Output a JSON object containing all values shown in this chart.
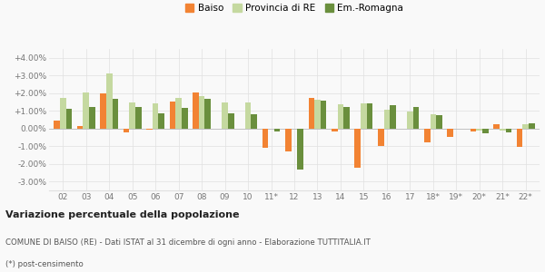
{
  "categories": [
    "02",
    "03",
    "04",
    "05",
    "06",
    "07",
    "08",
    "09",
    "10",
    "11*",
    "12",
    "13",
    "14",
    "15",
    "16",
    "17",
    "18*",
    "19*",
    "20*",
    "21*",
    "22*"
  ],
  "baiso": [
    0.45,
    0.12,
    1.97,
    -0.22,
    -0.07,
    1.55,
    2.02,
    -0.03,
    0.0,
    -1.08,
    -1.3,
    1.72,
    -0.15,
    -2.22,
    -0.98,
    0.0,
    -0.78,
    -0.45,
    -0.15,
    0.25,
    -1.05
  ],
  "provincia": [
    1.72,
    2.02,
    3.12,
    1.47,
    1.43,
    1.72,
    1.82,
    1.47,
    1.45,
    0.0,
    0.0,
    1.65,
    1.35,
    1.42,
    1.05,
    0.97,
    0.82,
    0.0,
    -0.12,
    -0.1,
    0.25
  ],
  "emromagna": [
    1.1,
    1.22,
    1.7,
    1.22,
    0.85,
    1.15,
    1.7,
    0.85,
    0.82,
    -0.18,
    -2.3,
    1.58,
    1.2,
    1.42,
    1.32,
    1.22,
    0.78,
    0.0,
    -0.25,
    -0.2,
    0.28
  ],
  "color_baiso": "#f28333",
  "color_provincia": "#c5d9a0",
  "color_emromagna": "#6a8f3d",
  "title": "Variazione percentuale della popolazione",
  "subtitle": "COMUNE DI BAISO (RE) - Dati ISTAT al 31 dicembre di ogni anno - Elaborazione TUTTITALIA.IT",
  "footnote": "(*) post-censimento",
  "ylim": [
    -3.5,
    4.5
  ],
  "yticks": [
    -3.0,
    -2.0,
    -1.0,
    0.0,
    1.0,
    2.0,
    3.0,
    4.0
  ],
  "ytick_labels": [
    "-3.00%",
    "-2.00%",
    "-1.00%",
    "0.00%",
    "+1.00%",
    "+2.00%",
    "+3.00%",
    "+4.00%"
  ],
  "bg_color": "#f9f9f9",
  "grid_color": "#e0e0e0"
}
